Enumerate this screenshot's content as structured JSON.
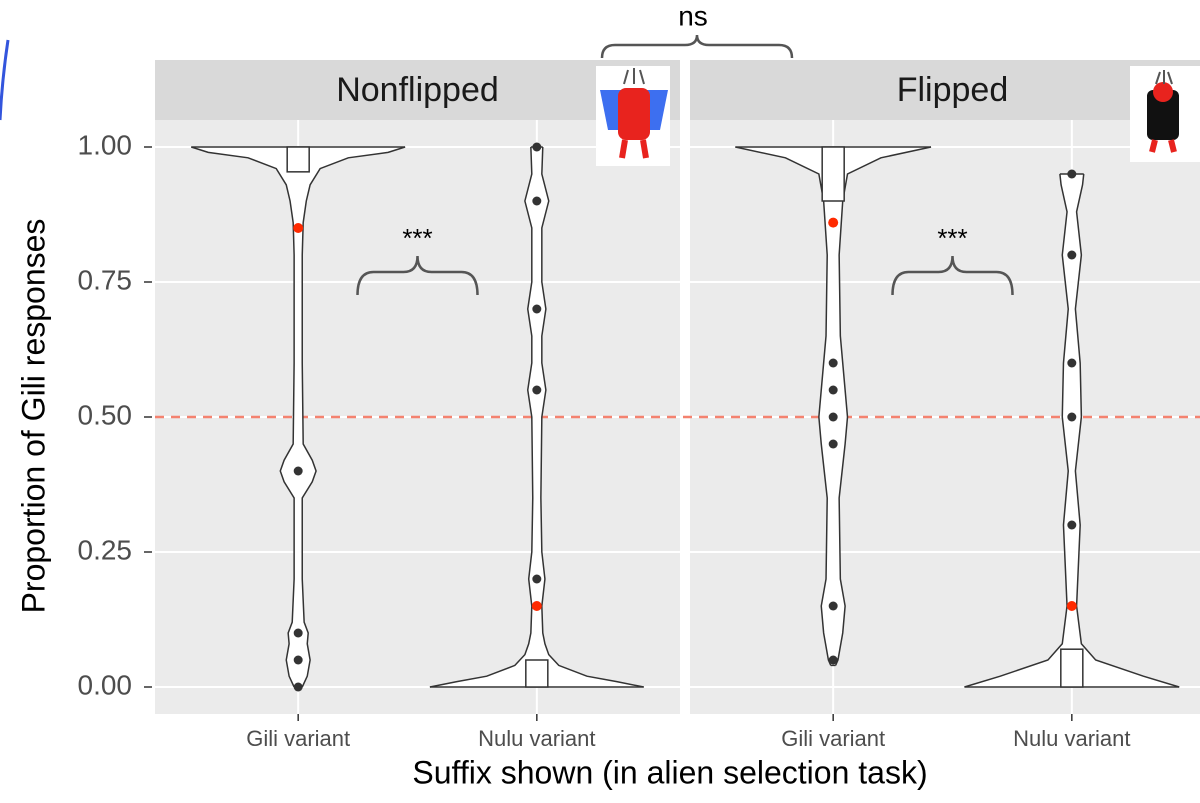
{
  "chart_data": {
    "type": "violin",
    "ylabel": "Proportion of Gili responses",
    "xlabel": "Suffix shown (in alien selection task)",
    "ylim": [
      -0.05,
      1.05
    ],
    "yticks": [
      {
        "value": 0,
        "label": "0.00"
      },
      {
        "value": 0.25,
        "label": "0.25"
      },
      {
        "value": 0.5,
        "label": "0.50"
      },
      {
        "value": 0.75,
        "label": "0.75"
      },
      {
        "value": 1,
        "label": "1.00"
      }
    ],
    "xlim": [
      0.4,
      2.6
    ],
    "grid": true,
    "reference_line": 0.5,
    "reference_color": "#f4826f",
    "point_color": "#333333",
    "mean_color": "#ff2a00",
    "annotations": [
      {
        "text": "ns",
        "from": "Nonflipped",
        "to": "Flipped"
      },
      {
        "text": "***",
        "panel": 0
      },
      {
        "text": "***",
        "panel": 1
      }
    ],
    "panels": [
      {
        "title": "Nonflipped",
        "groups": [
          {
            "category": "Gili variant",
            "violin_y": [
              0,
              0.02,
              0.05,
              0.08,
              0.1,
              0.12,
              0.2,
              0.35,
              0.38,
              0.4,
              0.42,
              0.45,
              0.6,
              0.8,
              0.86,
              0.9,
              0.93,
              0.96,
              0.98,
              0.99,
              1.0
            ],
            "violin_width": [
              0.017,
              0.038,
              0.05,
              0.038,
              0.042,
              0.025,
              0.017,
              0.017,
              0.059,
              0.075,
              0.059,
              0.021,
              0.017,
              0.017,
              0.021,
              0.034,
              0.05,
              0.092,
              0.21,
              0.377,
              0.448
            ],
            "points": [
              0.4,
              0.1,
              0.05,
              0
            ],
            "box": [
              0.954,
              1.0
            ],
            "mean": 0.85
          },
          {
            "category": "Nulu variant",
            "violin_y": [
              0,
              0.01,
              0.02,
              0.04,
              0.06,
              0.08,
              0.1,
              0.15,
              0.2,
              0.25,
              0.35,
              0.5,
              0.55,
              0.6,
              0.65,
              0.7,
              0.75,
              0.85,
              0.9,
              0.95,
              1.0
            ],
            "violin_width": [
              0.448,
              0.335,
              0.21,
              0.092,
              0.05,
              0.034,
              0.025,
              0.021,
              0.034,
              0.021,
              0.017,
              0.021,
              0.038,
              0.021,
              0.021,
              0.038,
              0.021,
              0.021,
              0.05,
              0.021,
              0.025
            ],
            "points": [
              1.0,
              0.9,
              0.7,
              0.55,
              0.2
            ],
            "box": [
              0.0,
              0.05
            ],
            "mean": 0.15
          }
        ]
      },
      {
        "title": "Flipped",
        "groups": [
          {
            "category": "Gili variant",
            "violin_y": [
              0.04,
              0.05,
              0.1,
              0.15,
              0.2,
              0.35,
              0.45,
              0.5,
              0.55,
              0.65,
              0.8,
              0.9,
              0.95,
              0.98,
              1.0
            ],
            "violin_width": [
              0.01,
              0.02,
              0.04,
              0.05,
              0.03,
              0.025,
              0.05,
              0.06,
              0.05,
              0.03,
              0.025,
              0.04,
              0.06,
              0.2,
              0.41
            ],
            "points": [
              0.6,
              0.55,
              0.5,
              0.45,
              0.15,
              0.05
            ],
            "box": [
              0.9,
              1.0
            ],
            "mean": 0.86
          },
          {
            "category": "Nulu variant",
            "violin_y": [
              0,
              0.02,
              0.05,
              0.08,
              0.15,
              0.3,
              0.4,
              0.5,
              0.6,
              0.7,
              0.8,
              0.88,
              0.93,
              0.95
            ],
            "violin_width": [
              0.45,
              0.3,
              0.1,
              0.04,
              0.02,
              0.035,
              0.015,
              0.04,
              0.035,
              0.015,
              0.04,
              0.02,
              0.045,
              0.05
            ],
            "points": [
              0.95,
              0.8,
              0.6,
              0.5,
              0.3
            ],
            "box": [
              0.0,
              0.07
            ],
            "mean": 0.15
          }
        ]
      }
    ]
  }
}
